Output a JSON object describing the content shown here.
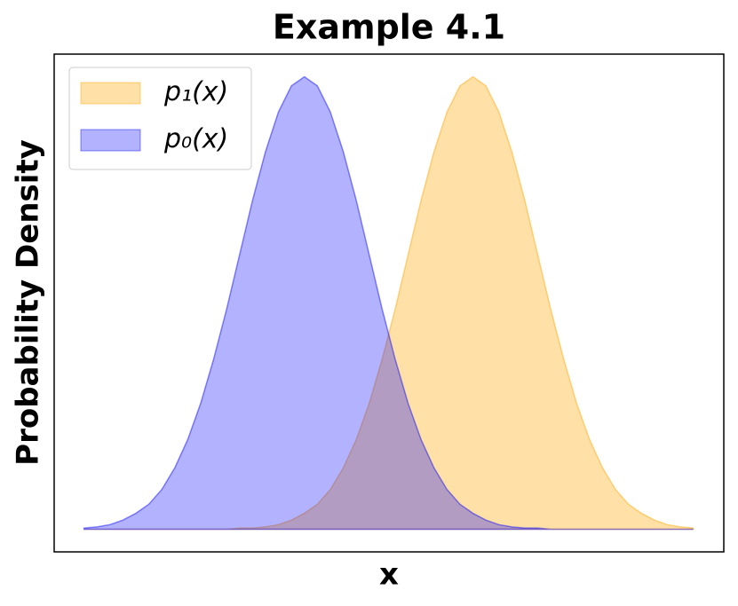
{
  "chart_data": {
    "type": "area",
    "title": "Example 4.1",
    "x_label": "x",
    "y_label": "Probability Density",
    "x": [
      -3.4,
      -3.2,
      -3.0,
      -2.8,
      -2.6,
      -2.4,
      -2.2,
      -2.0,
      -1.8,
      -1.6,
      -1.4,
      -1.2,
      -1.0,
      -0.8,
      -0.6,
      -0.4,
      -0.2,
      0,
      0.2,
      0.4,
      0.6,
      0.8,
      1.0,
      1.2,
      1.4,
      1.6,
      1.8,
      2.0,
      2.2,
      2.4,
      2.6,
      2.8,
      3.0,
      3.2,
      3.4,
      3.6,
      3.8,
      4.0,
      4.2,
      4.4,
      4.6,
      4.8,
      5.0,
      5.2,
      5.4,
      5.6,
      5.8,
      6.0
    ],
    "series": [
      {
        "name": "p₁(x)",
        "color": "#ffa500",
        "values": [
          0,
          0,
          0,
          0,
          0,
          0,
          0,
          0,
          0,
          0,
          0,
          0,
          0.001,
          0.001,
          0.002,
          0.004,
          0.008,
          0.014,
          0.022,
          0.035,
          0.054,
          0.079,
          0.111,
          0.15,
          0.194,
          0.242,
          0.29,
          0.333,
          0.368,
          0.391,
          0.399,
          0.391,
          0.368,
          0.333,
          0.29,
          0.242,
          0.194,
          0.15,
          0.111,
          0.079,
          0.054,
          0.035,
          0.022,
          0.014,
          0.008,
          0.004,
          0.002,
          0.001
        ]
      },
      {
        "name": "p₀(x)",
        "color": "#0000ff",
        "values": [
          0.001,
          0.002,
          0.004,
          0.008,
          0.014,
          0.022,
          0.035,
          0.054,
          0.079,
          0.111,
          0.15,
          0.194,
          0.242,
          0.29,
          0.333,
          0.368,
          0.391,
          0.399,
          0.391,
          0.368,
          0.333,
          0.29,
          0.242,
          0.194,
          0.15,
          0.111,
          0.079,
          0.054,
          0.035,
          0.022,
          0.014,
          0.008,
          0.004,
          0.002,
          0.001,
          0.001,
          0,
          0,
          0,
          0,
          0,
          0,
          0,
          0,
          0,
          0,
          0,
          0
        ]
      }
    ],
    "xlim": [
      -3.86,
      6.47
    ],
    "ylim": [
      -0.02,
      0.419
    ],
    "legend": "upper left"
  }
}
